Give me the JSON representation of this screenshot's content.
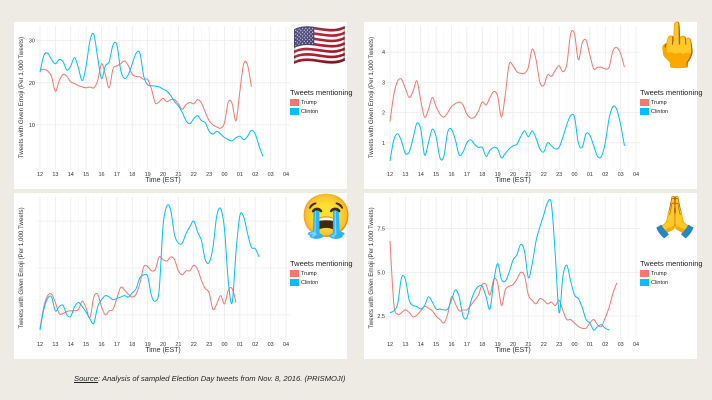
{
  "caption": {
    "source_label": "Source",
    "text": ": Analysis of sampled Election Day tweets from Nov. 8, 2016. (PRISMOJI)"
  },
  "legend": {
    "title": "Tweets mentioning",
    "items": [
      {
        "name": "Trump",
        "color": "#f8766d"
      },
      {
        "name": "Clinton",
        "color": "#00bfff"
      }
    ]
  },
  "chart_data": [
    {
      "type": "line",
      "emoji": "🇺🇸",
      "emoji_name": "us-flag-emoji",
      "title": "",
      "xlabel": "Time (EST)",
      "ylabel": "Tweets with Given Emoji (Per 1,000 Tweets)",
      "x_ticks": [
        "12",
        "13",
        "14",
        "15",
        "16",
        "17",
        "18",
        "19",
        "20",
        "21",
        "22",
        "23",
        "00",
        "01",
        "02",
        "03",
        "04"
      ],
      "y_ticks": [
        10,
        20,
        30
      ],
      "ylim": [
        0,
        33
      ],
      "grid": true,
      "legend_position": "right",
      "x": [
        0,
        0.25,
        0.5,
        0.75,
        1,
        1.25,
        1.5,
        1.75,
        2,
        2.25,
        2.5,
        2.75,
        3,
        3.25,
        3.5,
        3.75,
        4,
        4.25,
        4.5,
        4.75,
        5,
        5.25,
        5.5,
        5.75,
        6,
        6.25,
        6.5,
        6.75,
        7,
        7.25,
        7.5,
        7.75,
        8,
        8.25,
        8.5,
        8.75,
        9,
        9.25,
        9.5,
        9.75,
        10,
        10.25,
        10.5,
        10.75,
        11,
        11.25,
        11.5,
        11.75,
        12,
        12.25,
        12.5,
        12.75,
        13,
        13.25,
        13.5,
        13.75,
        14,
        14.25,
        14.5,
        14.75,
        15,
        15.25,
        15.5
      ],
      "series": [
        {
          "name": "Trump",
          "values": [
            23,
            23.2,
            22.8,
            21.5,
            18,
            20.5,
            22,
            21.5,
            20.2,
            19.8,
            19.3,
            19,
            18.8,
            19,
            18.8,
            20.5,
            24.5,
            22,
            18.8,
            23.3,
            24,
            24.5,
            25.2,
            24,
            22,
            21.5,
            21.4,
            20.8,
            20.8,
            18.5,
            15.2,
            15.5,
            16.3,
            15.5,
            16,
            16,
            15,
            13.7,
            14.8,
            15.3,
            15,
            16,
            15.2,
            13,
            11,
            10,
            9.5,
            9.2,
            10.5,
            15.5,
            15,
            11,
            18,
            24.5,
            24.2,
            19
          ]
        },
        {
          "name": "Clinton",
          "values": [
            22.5,
            26.5,
            27,
            25.5,
            24.5,
            25.5,
            25,
            23,
            24,
            26,
            23.5,
            20.5,
            24,
            30,
            31.5,
            26,
            21,
            24,
            25,
            29,
            29,
            23,
            21,
            22,
            24.5,
            27,
            27,
            21.5,
            19.5,
            19.3,
            19.2,
            19,
            18.5,
            18,
            17,
            15.5,
            14.5,
            13,
            11,
            10.3,
            11.5,
            12.2,
            11,
            10.5,
            8.5,
            7.8,
            8.5,
            7.8,
            7,
            6.5,
            6.2,
            7,
            7.3,
            6.5,
            7.3,
            8.7,
            7.8,
            5,
            2.5
          ]
        }
      ]
    },
    {
      "type": "line",
      "emoji": "🖕",
      "emoji_name": "middle-finger-emoji",
      "title": "",
      "xlabel": "Time (EST)",
      "ylabel": "Tweets with Given Emoji (Per 1,000 Tweets)",
      "x_ticks": [
        "12",
        "13",
        "14",
        "15",
        "16",
        "17",
        "18",
        "19",
        "20",
        "21",
        "22",
        "23",
        "00",
        "01",
        "02",
        "03",
        "04"
      ],
      "y_ticks": [
        1,
        2,
        3,
        4
      ],
      "ylim": [
        0.2,
        4.8
      ],
      "grid": true,
      "legend_position": "right",
      "x": [
        0,
        0.25,
        0.5,
        0.75,
        1,
        1.25,
        1.5,
        1.75,
        2,
        2.25,
        2.5,
        2.75,
        3,
        3.25,
        3.5,
        3.75,
        4,
        4.25,
        4.5,
        4.75,
        5,
        5.25,
        5.5,
        5.75,
        6,
        6.25,
        6.5,
        6.75,
        7,
        7.25,
        7.5,
        7.75,
        8,
        8.25,
        8.5,
        8.75,
        9,
        9.25,
        9.5,
        9.75,
        10,
        10.25,
        10.5,
        10.75,
        11,
        11.25,
        11.5,
        11.75,
        12,
        12.25,
        12.5,
        12.75,
        13,
        13.25,
        13.5,
        13.75,
        14,
        14.25,
        14.5,
        14.75,
        15,
        15.25,
        15.5
      ],
      "series": [
        {
          "name": "Trump",
          "values": [
            1.7,
            2.6,
            3.05,
            3.1,
            2.8,
            2.5,
            2.7,
            3.05,
            2.4,
            1.85,
            2.1,
            2.5,
            2.2,
            1.95,
            1.85,
            2.0,
            2.2,
            2.3,
            2.35,
            2.25,
            1.95,
            1.82,
            1.85,
            2.05,
            2.35,
            2.25,
            2.5,
            2.7,
            2.55,
            1.85,
            2.6,
            3.6,
            3.55,
            3.35,
            3.3,
            3.3,
            3.5,
            4.1,
            3.75,
            3.0,
            2.9,
            3.25,
            3.2,
            3.4,
            3.55,
            3.35,
            3.6,
            4.6,
            4.6,
            3.75,
            4.3,
            4.4,
            3.9,
            3.45,
            3.5,
            3.5,
            3.45,
            3.5,
            4.05,
            4.15,
            3.95,
            3.5
          ]
        },
        {
          "name": "Clinton",
          "values": [
            0.4,
            1.1,
            1.3,
            1.05,
            0.65,
            0.7,
            1.15,
            1.65,
            1.45,
            0.6,
            1.0,
            1.45,
            1.2,
            0.5,
            0.55,
            1.35,
            1.45,
            1.1,
            0.6,
            0.7,
            1.0,
            1.1,
            0.95,
            0.85,
            0.85,
            0.55,
            0.75,
            0.85,
            0.8,
            0.5,
            0.65,
            0.8,
            0.9,
            0.95,
            1.2,
            1.4,
            1.2,
            1.4,
            1.15,
            0.8,
            0.7,
            1.0,
            0.9,
            0.8,
            0.85,
            1.2,
            1.6,
            1.9,
            1.85,
            1.0,
            0.85,
            1.3,
            1.25,
            0.9,
            0.55,
            0.55,
            1.0,
            1.8,
            2.2,
            2.1,
            1.6,
            0.9
          ]
        }
      ]
    },
    {
      "type": "line",
      "emoji": "😭",
      "emoji_name": "loudly-crying-face-emoji",
      "title": "",
      "xlabel": "Time (EST)",
      "ylabel": "Tweets with Given Emoji (Per 1,000 Tweets)",
      "x_ticks": [
        "12",
        "13",
        "14",
        "15",
        "16",
        "17",
        "18",
        "19",
        "20",
        "21",
        "22",
        "23",
        "00",
        "01",
        "02",
        "03",
        "04"
      ],
      "y_ticks": [],
      "ylim": [
        0,
        100
      ],
      "grid": true,
      "legend_position": "right",
      "x": [
        0,
        0.25,
        0.5,
        0.75,
        1,
        1.25,
        1.5,
        1.75,
        2,
        2.25,
        2.5,
        2.75,
        3,
        3.25,
        3.5,
        3.75,
        4,
        4.25,
        4.5,
        4.75,
        5,
        5.25,
        5.5,
        5.75,
        6,
        6.25,
        6.5,
        6.75,
        7,
        7.25,
        7.5,
        7.75,
        8,
        8.25,
        8.5,
        8.75,
        9,
        9.25,
        9.5,
        9.75,
        10,
        10.25,
        10.5,
        10.75,
        11,
        11.25,
        11.5,
        11.75,
        12,
        12.25,
        12.5,
        12.75,
        13,
        13.25,
        13.5,
        13.75,
        14,
        14.25,
        14.5,
        14.75,
        15,
        15.25,
        15.5
      ],
      "series": [
        {
          "name": "Trump",
          "values": [
            6,
            22,
            30,
            31,
            25,
            17,
            17,
            18.5,
            19,
            19,
            20,
            26,
            21,
            14,
            29,
            31,
            22,
            16,
            19,
            20,
            28,
            36,
            34,
            31,
            29,
            31,
            39,
            51,
            51,
            48,
            49,
            58,
            56,
            55,
            58,
            56,
            48,
            45,
            48,
            48,
            52,
            49,
            41,
            35,
            32,
            20,
            24,
            30,
            24,
            34,
            35,
            25
          ]
        },
        {
          "name": "Clinton",
          "values": [
            5,
            20,
            28,
            29,
            19,
            22,
            23,
            16,
            15,
            22,
            25,
            22,
            18,
            13,
            10,
            22,
            27,
            30,
            29,
            27,
            28,
            29,
            30,
            29,
            32,
            35,
            43,
            45,
            44,
            30,
            26,
            34,
            80,
            95,
            92,
            74,
            68,
            68,
            75,
            80,
            84,
            76,
            70,
            56,
            54,
            65,
            88,
            93,
            78,
            40,
            25,
            62,
            88,
            87,
            75,
            65,
            64,
            58
          ]
        }
      ]
    },
    {
      "type": "line",
      "emoji": "🙏",
      "emoji_name": "folded-hands-emoji",
      "title": "",
      "xlabel": "Time (EST)",
      "ylabel": "Tweets with Given Emoji (Per 1,000 Tweets)",
      "x_ticks": [
        "12",
        "13",
        "14",
        "15",
        "16",
        "17",
        "18",
        "19",
        "20",
        "21",
        "22",
        "23",
        "00",
        "01",
        "02",
        "03",
        "04"
      ],
      "y_ticks": [
        2.5,
        5.0,
        7.5
      ],
      "y_tick_labels": [
        "2.5",
        "5.0",
        "7.5"
      ],
      "ylim": [
        1.3,
        9.2
      ],
      "grid": true,
      "legend_position": "right",
      "x": [
        0,
        0.25,
        0.5,
        0.75,
        1,
        1.25,
        1.5,
        1.75,
        2,
        2.25,
        2.5,
        2.75,
        3,
        3.25,
        3.5,
        3.75,
        4,
        4.25,
        4.5,
        4.75,
        5,
        5.25,
        5.5,
        5.75,
        6,
        6.25,
        6.5,
        6.75,
        7,
        7.25,
        7.5,
        7.75,
        8,
        8.25,
        8.5,
        8.75,
        9,
        9.25,
        9.5,
        9.75,
        10,
        10.25,
        10.5,
        10.75,
        11,
        11.25,
        11.5,
        11.75,
        12,
        12.25,
        12.5,
        12.75,
        13,
        13.25,
        13.5,
        13.75,
        14,
        14.25,
        14.5,
        14.75,
        15,
        15.25,
        15.5
      ],
      "series": [
        {
          "name": "Trump",
          "values": [
            6.8,
            3.2,
            2.6,
            2.7,
            2.85,
            2.7,
            2.45,
            2.55,
            2.8,
            3.05,
            2.95,
            2.8,
            2.5,
            2.3,
            2.1,
            2.6,
            3.6,
            3.2,
            2.8,
            2.85,
            2.85,
            3.1,
            3.4,
            3.7,
            4.3,
            4.3,
            3.7,
            4.6,
            4.4,
            3.1,
            4.0,
            4.2,
            4.3,
            4.6,
            5.0,
            4.8,
            3.7,
            3.4,
            3.2,
            3.5,
            3.4,
            3.2,
            3.3,
            3.1,
            3.4,
            2.8,
            2.3,
            2.3,
            2.1,
            1.9,
            1.8,
            1.8,
            2.1,
            2.3,
            2.0,
            1.9,
            2.4,
            3.0,
            3.8,
            4.4
          ]
        },
        {
          "name": "Clinton",
          "values": [
            2.7,
            2.8,
            3.2,
            4.7,
            4.6,
            3.4,
            3.1,
            3.05,
            2.9,
            3.1,
            3.6,
            3.3,
            2.9,
            2.9,
            2.85,
            2.9,
            3.4,
            4.0,
            3.6,
            2.5,
            2.4,
            3.3,
            3.9,
            4.2,
            4.2,
            3.6,
            2.9,
            4.5,
            5.5,
            4.6,
            4.5,
            5.0,
            5.7,
            6.0,
            6.6,
            6.2,
            4.7,
            5.5,
            6.8,
            7.6,
            8.3,
            9.0,
            8.9,
            6.0,
            2.7,
            4.8,
            5.4,
            4.5,
            3.7,
            3.5,
            3.0,
            2.3,
            2.1,
            1.7,
            1.9,
            2.0,
            1.8,
            1.7
          ]
        }
      ]
    }
  ]
}
